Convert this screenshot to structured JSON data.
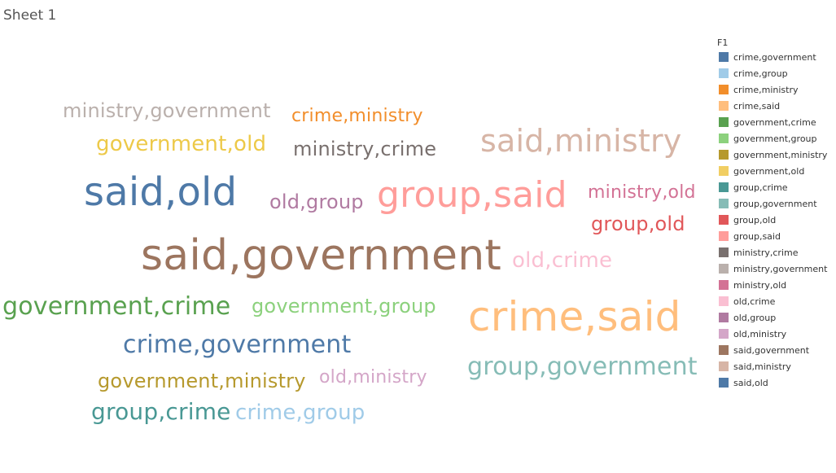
{
  "sheet": {
    "title": "Sheet 1"
  },
  "chart_data": {
    "type": "word_cloud",
    "legend_title": "F1",
    "legend_placement": "right",
    "words": [
      {
        "text": "ministry,government",
        "color": "#bab0ac",
        "size": 24
      },
      {
        "text": "crime,ministry",
        "color": "#f28e2b",
        "size": 22
      },
      {
        "text": "government,old",
        "color": "#edc948",
        "size": 26
      },
      {
        "text": "ministry,crime",
        "color": "#79706e",
        "size": 24
      },
      {
        "text": "said,ministry",
        "color": "#d7b5a6",
        "size": 38
      },
      {
        "text": "said,old",
        "color": "#4e79a7",
        "size": 48
      },
      {
        "text": "old,group",
        "color": "#b07aa1",
        "size": 24
      },
      {
        "text": "group,said",
        "color": "#ff9d9a",
        "size": 44
      },
      {
        "text": "ministry,old",
        "color": "#d37295",
        "size": 22
      },
      {
        "text": "group,old",
        "color": "#e15759",
        "size": 24
      },
      {
        "text": "said,government",
        "color": "#9c755f",
        "size": 52
      },
      {
        "text": "old,crime",
        "color": "#fabfd2",
        "size": 26
      },
      {
        "text": "government,crime",
        "color": "#59a14f",
        "size": 30
      },
      {
        "text": "government,group",
        "color": "#8cd17d",
        "size": 24
      },
      {
        "text": "crime,said",
        "color": "#ffbe7d",
        "size": 50
      },
      {
        "text": "crime,government",
        "color": "#4e79a7",
        "size": 30
      },
      {
        "text": "group,government",
        "color": "#86bcb6",
        "size": 30
      },
      {
        "text": "government,ministry",
        "color": "#b6992d",
        "size": 24
      },
      {
        "text": "old,ministry",
        "color": "#d4a6c8",
        "size": 22
      },
      {
        "text": "group,crime",
        "color": "#499894",
        "size": 28
      },
      {
        "text": "crime,group",
        "color": "#a0cbe8",
        "size": 26
      }
    ],
    "legend": [
      {
        "label": "crime,government",
        "color": "#4e79a7"
      },
      {
        "label": "crime,group",
        "color": "#a0cbe8"
      },
      {
        "label": "crime,ministry",
        "color": "#f28e2b"
      },
      {
        "label": "crime,said",
        "color": "#ffbe7d"
      },
      {
        "label": "government,crime",
        "color": "#59a14f"
      },
      {
        "label": "government,group",
        "color": "#8cd17d"
      },
      {
        "label": "government,ministry",
        "color": "#b6992d"
      },
      {
        "label": "government,old",
        "color": "#f1ce63"
      },
      {
        "label": "group,crime",
        "color": "#499894"
      },
      {
        "label": "group,government",
        "color": "#86bcb6"
      },
      {
        "label": "group,old",
        "color": "#e15759"
      },
      {
        "label": "group,said",
        "color": "#ff9d9a"
      },
      {
        "label": "ministry,crime",
        "color": "#79706e"
      },
      {
        "label": "ministry,government",
        "color": "#bab0ac"
      },
      {
        "label": "ministry,old",
        "color": "#d37295"
      },
      {
        "label": "old,crime",
        "color": "#fabfd2"
      },
      {
        "label": "old,group",
        "color": "#b07aa1"
      },
      {
        "label": "old,ministry",
        "color": "#d4a6c8"
      },
      {
        "label": "said,government",
        "color": "#9d7660"
      },
      {
        "label": "said,ministry",
        "color": "#d7b5a6"
      },
      {
        "label": "said,old",
        "color": "#4e79a7"
      }
    ]
  }
}
